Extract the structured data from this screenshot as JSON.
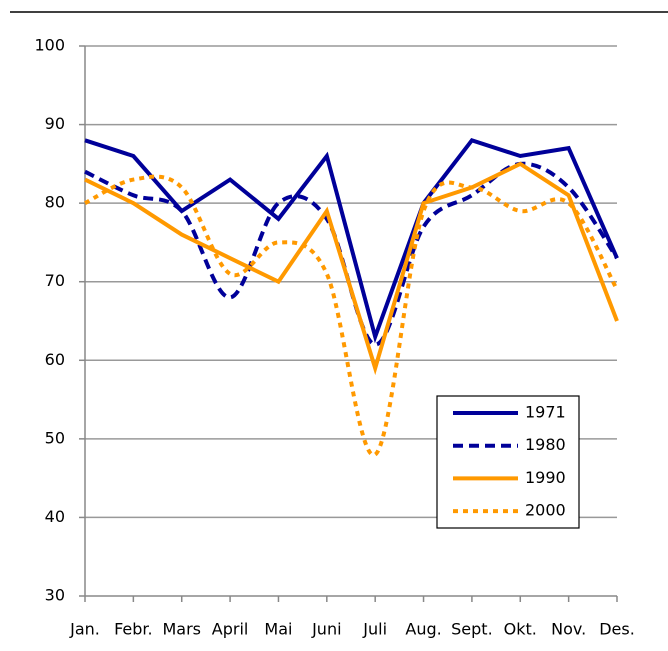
{
  "chart_data": {
    "type": "line",
    "categories": [
      "Jan.",
      "Febr.",
      "Mars",
      "April",
      "Mai",
      "Juni",
      "Juli",
      "Aug.",
      "Sept.",
      "Okt.",
      "Nov.",
      "Des."
    ],
    "series": [
      {
        "name": "1971",
        "color": "#000099",
        "dash": "solid",
        "smooth": false,
        "values": [
          88,
          86,
          79,
          83,
          78,
          86,
          63,
          80,
          88,
          86,
          87,
          73
        ]
      },
      {
        "name": "1980",
        "color": "#000099",
        "dash": "dashed",
        "smooth": true,
        "values": [
          84,
          81,
          79,
          68,
          80,
          78,
          62,
          77,
          81,
          85,
          82,
          73
        ]
      },
      {
        "name": "1990",
        "color": "#ff9900",
        "dash": "solid",
        "smooth": false,
        "values": [
          83,
          80,
          76,
          73,
          70,
          79,
          59,
          80,
          82,
          85,
          81,
          65
        ]
      },
      {
        "name": "2000",
        "color": "#ff9900",
        "dash": "dotted",
        "smooth": true,
        "values": [
          80,
          83,
          82,
          71,
          75,
          71,
          48,
          79,
          82,
          79,
          80,
          69
        ]
      }
    ],
    "ylim": [
      30,
      100
    ],
    "yticks": [
      30,
      40,
      50,
      60,
      70,
      80,
      90,
      100
    ],
    "grid": true,
    "legend": "lower right"
  }
}
